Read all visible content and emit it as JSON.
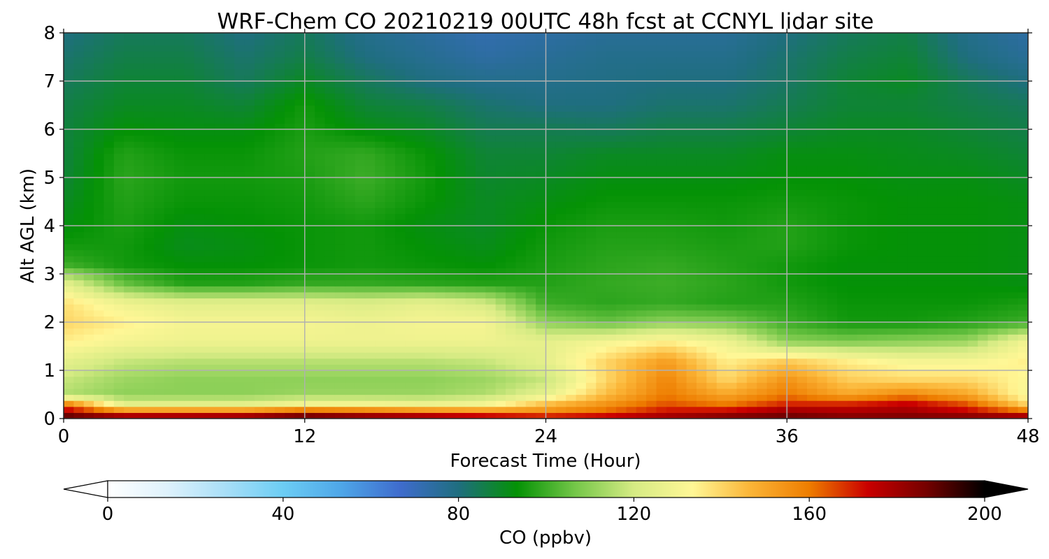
{
  "chart_data": {
    "type": "heatmap",
    "title": "WRF-Chem CO  20210219 00UTC 48h fcst at CCNYL lidar site",
    "xlabel": "Forecast Time (Hour)",
    "ylabel": "Alt AGL (km)",
    "xlim": [
      0,
      48
    ],
    "ylim": [
      0,
      8
    ],
    "xticks": [
      0,
      12,
      24,
      36,
      48
    ],
    "yticks": [
      0,
      1,
      2,
      3,
      4,
      5,
      6,
      7,
      8
    ],
    "grid": true,
    "x": [
      0,
      3,
      6,
      9,
      12,
      15,
      18,
      21,
      24,
      27,
      30,
      33,
      36,
      39,
      42,
      45,
      48
    ],
    "y": [
      0,
      0.1,
      0.3,
      0.5,
      0.8,
      1.2,
      1.6,
      2.0,
      2.4,
      2.8,
      3.2,
      3.6,
      4.0,
      4.5,
      5.0,
      5.5,
      6.0,
      6.5,
      7.0,
      7.5,
      8.0
    ],
    "values": [
      [
        195,
        190,
        190,
        192,
        195,
        190,
        188,
        185,
        183,
        185,
        185,
        188,
        190,
        185,
        188,
        190,
        190
      ],
      [
        185,
        170,
        170,
        170,
        180,
        175,
        170,
        165,
        160,
        165,
        175,
        180,
        185,
        182,
        182,
        178,
        170
      ],
      [
        160,
        125,
        125,
        125,
        130,
        130,
        128,
        130,
        145,
        155,
        165,
        160,
        170,
        170,
        175,
        165,
        140
      ],
      [
        115,
        110,
        110,
        110,
        112,
        112,
        112,
        115,
        125,
        145,
        160,
        150,
        160,
        150,
        158,
        150,
        130
      ],
      [
        118,
        112,
        110,
        110,
        110,
        110,
        110,
        112,
        118,
        140,
        158,
        140,
        155,
        142,
        140,
        140,
        132
      ],
      [
        125,
        118,
        116,
        116,
        116,
        116,
        116,
        118,
        125,
        140,
        152,
        135,
        142,
        135,
        130,
        130,
        135
      ],
      [
        135,
        130,
        128,
        128,
        128,
        128,
        128,
        128,
        125,
        130,
        135,
        128,
        110,
        108,
        110,
        112,
        130
      ],
      [
        140,
        135,
        130,
        130,
        130,
        128,
        130,
        130,
        110,
        105,
        110,
        108,
        100,
        95,
        95,
        97,
        100
      ],
      [
        138,
        128,
        124,
        124,
        124,
        122,
        125,
        120,
        100,
        98,
        99,
        97,
        97,
        94,
        94,
        94,
        96
      ],
      [
        125,
        105,
        97,
        97,
        99,
        99,
        98,
        97,
        97,
        99,
        100,
        98,
        95,
        93,
        93,
        93,
        92
      ],
      [
        100,
        95,
        93,
        93,
        94,
        95,
        94,
        93,
        96,
        98,
        99,
        97,
        95,
        93,
        93,
        93,
        92
      ],
      [
        95,
        95,
        91,
        92,
        94,
        95,
        93,
        91,
        95,
        97,
        97,
        96,
        97,
        94,
        93,
        93,
        92
      ],
      [
        92,
        96,
        92,
        93,
        94,
        95,
        92,
        90,
        94,
        96,
        96,
        95,
        97,
        94,
        93,
        93,
        92
      ],
      [
        90,
        97,
        94,
        94,
        95,
        98,
        94,
        90,
        92,
        94,
        94,
        94,
        95,
        94,
        93,
        93,
        92
      ],
      [
        88,
        98,
        95,
        95,
        96,
        100,
        95,
        89,
        90,
        92,
        92,
        92,
        93,
        93,
        92,
        92,
        90
      ],
      [
        87,
        97,
        94,
        94,
        97,
        99,
        94,
        88,
        88,
        90,
        90,
        90,
        92,
        92,
        91,
        90,
        88
      ],
      [
        87,
        93,
        92,
        92,
        96,
        92,
        90,
        85,
        85,
        84,
        86,
        86,
        88,
        90,
        90,
        88,
        86
      ],
      [
        86,
        90,
        90,
        88,
        95,
        88,
        86,
        82,
        80,
        80,
        82,
        82,
        85,
        88,
        88,
        86,
        84
      ],
      [
        84,
        88,
        88,
        84,
        90,
        84,
        80,
        78,
        78,
        79,
        80,
        80,
        83,
        88,
        90,
        84,
        80
      ],
      [
        82,
        86,
        86,
        82,
        86,
        80,
        77,
        74,
        76,
        78,
        78,
        78,
        82,
        86,
        88,
        80,
        76
      ],
      [
        80,
        84,
        84,
        80,
        84,
        78,
        75,
        72,
        74,
        76,
        76,
        76,
        80,
        84,
        86,
        78,
        74
      ]
    ],
    "colorbar": {
      "label": "CO  (ppbv)",
      "min": 0,
      "max": 200,
      "ticks": [
        0,
        40,
        80,
        120,
        160,
        200
      ],
      "extend": "both",
      "colors": [
        "#ffffff",
        "#dff2fc",
        "#a9dff7",
        "#6ccdf4",
        "#4ea6e8",
        "#3f6ccd",
        "#1f6e7f",
        "#049205",
        "#75c749",
        "#d6eb84",
        "#fff796",
        "#fbb436",
        "#ee7d00",
        "#ca0000",
        "#750100",
        "#000000"
      ]
    }
  }
}
